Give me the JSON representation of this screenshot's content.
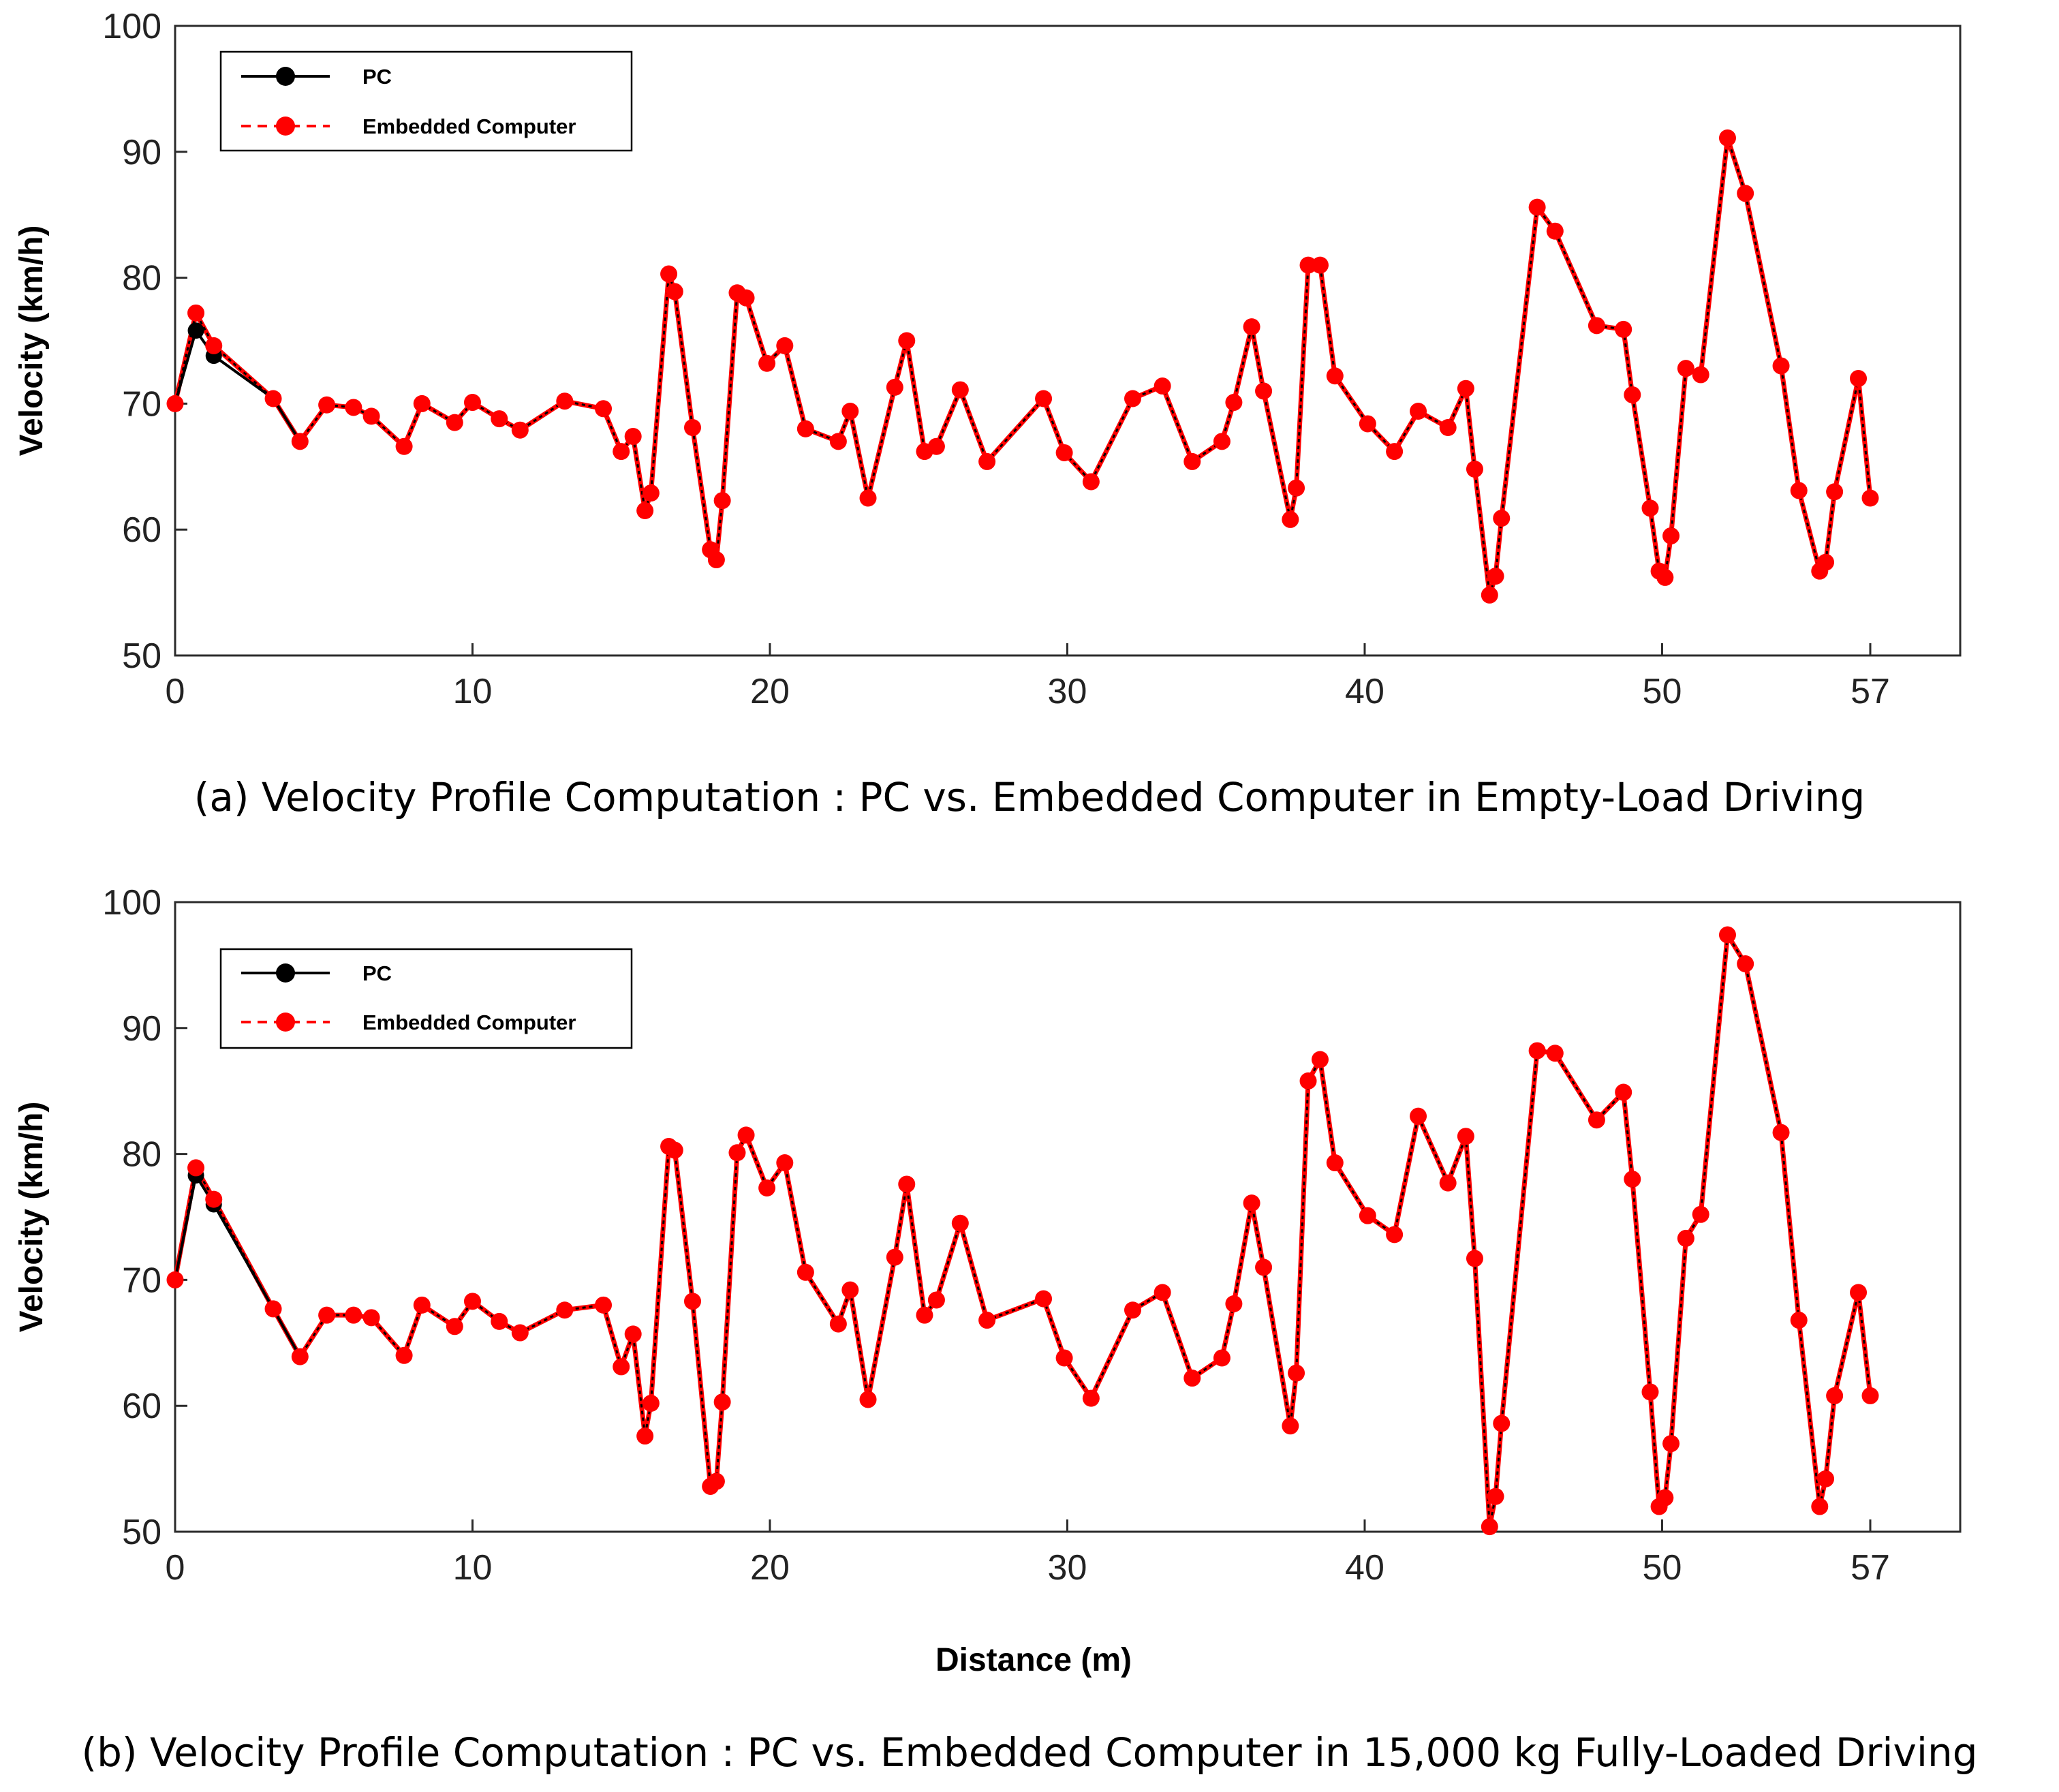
{
  "chart_data": [
    {
      "type": "line",
      "caption": "(a) Velocity Profile Computation : PC vs. Embedded Computer in Empty-Load Driving",
      "xlabel": "",
      "ylabel": "Velocity (km/h)",
      "xlim": [
        0,
        60
      ],
      "ylim": [
        50,
        100
      ],
      "xticks": [
        0,
        10,
        20,
        30,
        40,
        50,
        57
      ],
      "yticks": [
        50,
        60,
        70,
        80,
        90,
        100
      ],
      "legend_position": "top-left",
      "colors": {
        "pc": "#000000",
        "embedded": "#ff0000"
      },
      "series": [
        {
          "name": "PC",
          "style": "solid",
          "x": [
            0,
            0.7,
            1.3,
            3.3,
            4.2
          ],
          "y": [
            70,
            75.8,
            73.8,
            70.4,
            67.0
          ]
        },
        {
          "name": "Embedded Computer",
          "style": "dashed",
          "x": [
            0,
            0.7,
            1.3,
            3.3,
            4.2,
            5.1,
            6.0,
            6.6,
            7.7,
            8.3,
            9.4,
            10.0,
            10.9,
            11.6,
            13.1,
            14.4,
            15.0,
            15.4,
            15.8,
            16.0,
            16.6,
            16.8,
            17.4,
            18.0,
            18.2,
            18.4,
            18.9,
            19.2,
            19.9,
            20.5,
            21.2,
            22.3,
            22.7,
            23.3,
            24.2,
            24.6,
            25.2,
            25.6,
            26.4,
            27.3,
            29.2,
            29.9,
            30.8,
            32.2,
            33.2,
            34.2,
            35.2,
            35.6,
            36.2,
            36.6,
            37.5,
            37.7,
            38.1,
            38.5,
            39.0,
            40.1,
            41.0,
            41.8,
            42.8,
            43.4,
            43.7,
            44.2,
            44.4,
            44.6,
            45.8,
            46.4,
            47.8,
            48.7,
            49.0,
            49.6,
            49.9,
            50.1,
            50.3,
            50.8,
            51.3,
            52.2,
            52.8,
            54.0,
            54.6,
            55.3,
            55.5,
            55.8,
            56.6,
            57.0
          ],
          "y": [
            70,
            77.2,
            74.6,
            70.4,
            67.0,
            69.9,
            69.7,
            69.0,
            66.6,
            70.0,
            68.5,
            70.1,
            68.8,
            67.9,
            70.2,
            69.6,
            66.2,
            67.4,
            61.5,
            62.9,
            80.3,
            78.9,
            68.1,
            58.4,
            57.6,
            62.3,
            78.8,
            78.4,
            73.2,
            74.6,
            68.0,
            67.0,
            69.4,
            62.5,
            71.3,
            75.0,
            66.2,
            66.6,
            71.1,
            65.4,
            70.4,
            66.1,
            63.8,
            70.4,
            71.4,
            65.4,
            67.0,
            70.1,
            76.1,
            71.0,
            60.8,
            63.3,
            81.0,
            81.0,
            72.2,
            68.4,
            66.2,
            69.4,
            68.1,
            71.2,
            64.8,
            54.8,
            56.3,
            60.9,
            85.6,
            83.7,
            76.2,
            75.9,
            70.7,
            61.7,
            56.7,
            56.2,
            59.5,
            72.8,
            72.3,
            91.1,
            86.7,
            73.0,
            63.1,
            56.7,
            57.4,
            63.0,
            72.0,
            62.5
          ]
        }
      ]
    },
    {
      "type": "line",
      "caption": "(b) Velocity Profile Computation : PC vs. Embedded Computer in 15,000 kg Fully-Loaded Driving",
      "xlabel": "Distance  (m)",
      "ylabel": "Velocity (km/h)",
      "xlim": [
        0,
        60
      ],
      "ylim": [
        50,
        100
      ],
      "xticks": [
        0,
        10,
        20,
        30,
        40,
        50,
        57
      ],
      "yticks": [
        50,
        60,
        70,
        80,
        90,
        100
      ],
      "legend_position": "top-left",
      "colors": {
        "pc": "#000000",
        "embedded": "#ff0000"
      },
      "series": [
        {
          "name": "PC",
          "style": "solid",
          "x": [
            0,
            0.7,
            1.3,
            3.3,
            4.2
          ],
          "y": [
            70,
            78.3,
            76.0,
            67.7,
            63.9
          ]
        },
        {
          "name": "Embedded Computer",
          "style": "dashed",
          "x": [
            0,
            0.7,
            1.3,
            3.3,
            4.2,
            5.1,
            6.0,
            6.6,
            7.7,
            8.3,
            9.4,
            10.0,
            10.9,
            11.6,
            13.1,
            14.4,
            15.0,
            15.4,
            15.8,
            16.0,
            16.6,
            16.8,
            17.4,
            18.0,
            18.2,
            18.4,
            18.9,
            19.2,
            19.9,
            20.5,
            21.2,
            22.3,
            22.7,
            23.3,
            24.2,
            24.6,
            25.2,
            25.6,
            26.4,
            27.3,
            29.2,
            29.9,
            30.8,
            32.2,
            33.2,
            34.2,
            35.2,
            35.6,
            36.2,
            36.6,
            37.5,
            37.7,
            38.1,
            38.5,
            39.0,
            40.1,
            41.0,
            41.8,
            42.8,
            43.4,
            43.7,
            44.2,
            44.4,
            44.6,
            45.8,
            46.4,
            47.8,
            48.7,
            49.0,
            49.6,
            49.9,
            50.1,
            50.3,
            50.8,
            51.3,
            52.2,
            52.8,
            54.0,
            54.6,
            55.3,
            55.5,
            55.8,
            56.6,
            57.0
          ],
          "y": [
            70,
            78.9,
            76.4,
            67.7,
            63.9,
            67.2,
            67.2,
            67.0,
            64.0,
            68.0,
            66.3,
            68.3,
            66.7,
            65.8,
            67.6,
            68.0,
            63.1,
            65.7,
            57.6,
            60.2,
            80.6,
            80.3,
            68.3,
            53.6,
            54.0,
            60.3,
            80.1,
            81.5,
            77.3,
            79.3,
            70.6,
            66.5,
            69.2,
            60.5,
            71.8,
            77.6,
            67.2,
            68.4,
            74.5,
            66.8,
            68.5,
            63.8,
            60.6,
            67.6,
            69.0,
            62.2,
            63.8,
            68.1,
            76.1,
            71.0,
            58.4,
            62.6,
            85.8,
            87.5,
            79.3,
            75.1,
            73.6,
            83.0,
            77.7,
            81.4,
            71.7,
            50.4,
            52.8,
            58.6,
            88.2,
            88.0,
            82.7,
            84.9,
            78.0,
            61.1,
            52.0,
            52.7,
            57.0,
            73.3,
            75.2,
            97.4,
            95.1,
            81.7,
            66.8,
            52.0,
            54.2,
            60.8,
            69.0,
            60.8
          ]
        }
      ]
    }
  ]
}
